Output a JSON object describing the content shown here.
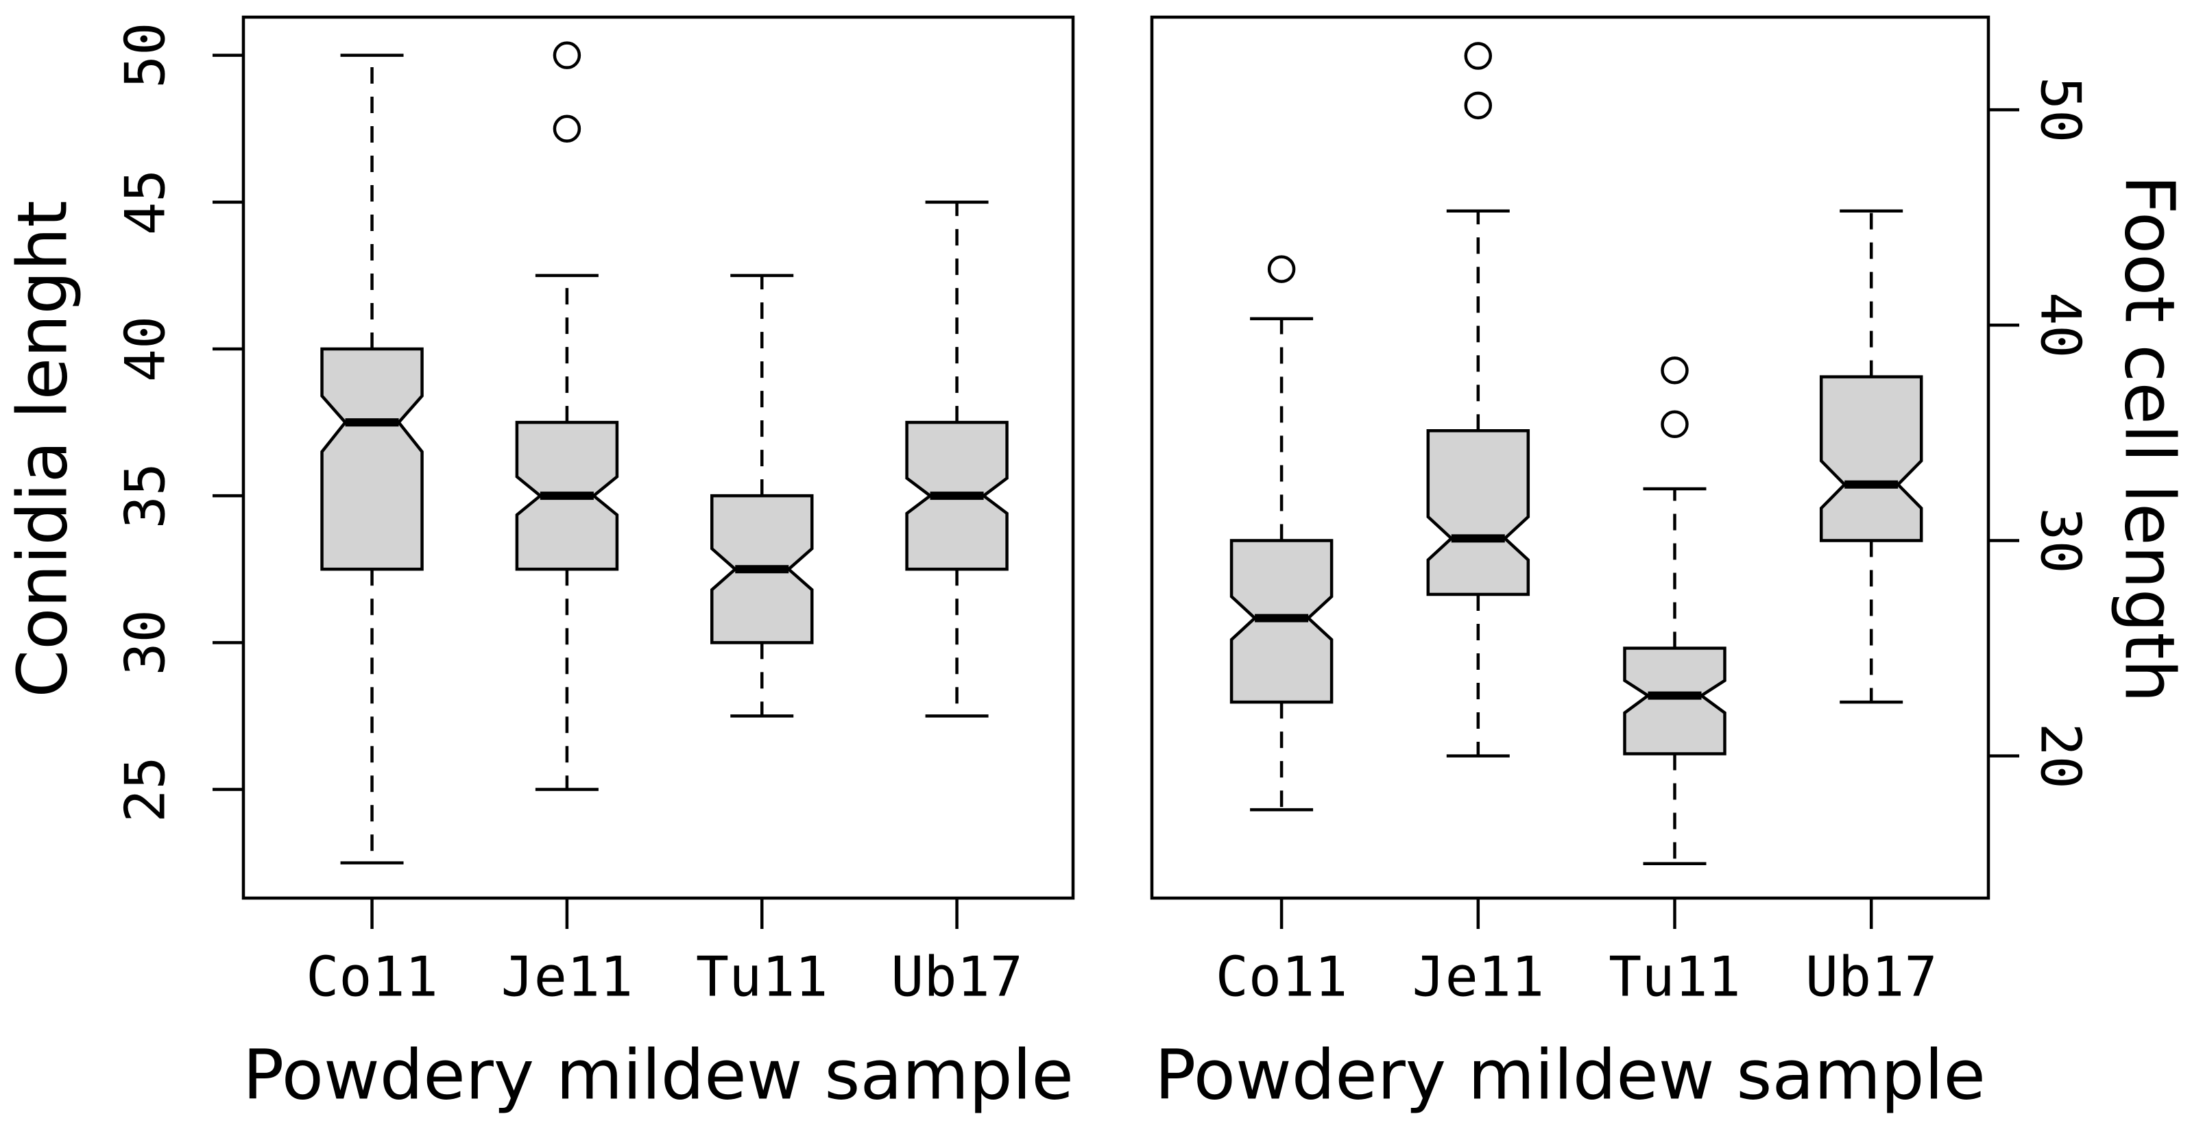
{
  "figure": {
    "background": "#ffffff",
    "foreground": "#000000",
    "box_fill": "#d3d3d3"
  },
  "chart_data": [
    {
      "type": "boxplot",
      "panel": "left",
      "notched": true,
      "ylabel": "Conidia lenght",
      "xlabel": "Powdery mildew sample",
      "axis_side": "left",
      "categories": [
        "Co11",
        "Je11",
        "Tu11",
        "Ub17"
      ],
      "yticks": [
        25,
        30,
        35,
        40,
        45,
        50
      ],
      "ylim": [
        21.3,
        51.3
      ],
      "grid": false,
      "boxes": [
        {
          "category": "Co11",
          "whisker_low": 22.5,
          "q1": 32.5,
          "median": 37.5,
          "q3": 40,
          "whisker_high": 50,
          "notch_low": 36.5,
          "notch_high": 38.4,
          "outliers": []
        },
        {
          "category": "Je11",
          "whisker_low": 25,
          "q1": 32.5,
          "median": 35,
          "q3": 37.5,
          "whisker_high": 42.5,
          "notch_low": 34.35,
          "notch_high": 35.65,
          "outliers": [
            47.5,
            50
          ]
        },
        {
          "category": "Tu11",
          "whisker_low": 27.5,
          "q1": 30,
          "median": 32.5,
          "q3": 35,
          "whisker_high": 42.5,
          "notch_low": 31.8,
          "notch_high": 33.2,
          "outliers": []
        },
        {
          "category": "Ub17",
          "whisker_low": 27.5,
          "q1": 32.5,
          "median": 35,
          "q3": 37.5,
          "whisker_high": 45,
          "notch_low": 34.4,
          "notch_high": 35.6,
          "outliers": []
        }
      ]
    },
    {
      "type": "boxplot",
      "panel": "right",
      "notched": true,
      "ylabel": "Foot cell length",
      "xlabel": "Powdery mildew sample",
      "axis_side": "right",
      "categories": [
        "Co11",
        "Je11",
        "Tu11",
        "Ub17"
      ],
      "yticks": [
        20,
        30,
        40,
        50
      ],
      "ylim": [
        13.4,
        54.3
      ],
      "grid": false,
      "boxes": [
        {
          "category": "Co11",
          "whisker_low": 17.5,
          "q1": 22.5,
          "median": 26.4,
          "q3": 30,
          "whisker_high": 40.3,
          "notch_low": 25.4,
          "notch_high": 27.4,
          "outliers": [
            42.6
          ]
        },
        {
          "category": "Je11",
          "whisker_low": 20,
          "q1": 27.5,
          "median": 30.1,
          "q3": 35.1,
          "whisker_high": 45.3,
          "notch_low": 29.1,
          "notch_high": 31.1,
          "outliers": [
            50.2,
            52.5
          ]
        },
        {
          "category": "Tu11",
          "whisker_low": 15,
          "q1": 20.1,
          "median": 22.8,
          "q3": 25,
          "whisker_high": 32.4,
          "notch_low": 22.0,
          "notch_high": 23.5,
          "outliers": [
            35.4,
            37.9
          ]
        },
        {
          "category": "Ub17",
          "whisker_low": 22.5,
          "q1": 30,
          "median": 32.6,
          "q3": 37.6,
          "whisker_high": 45.3,
          "notch_low": 31.5,
          "notch_high": 33.7,
          "outliers": []
        }
      ]
    }
  ]
}
